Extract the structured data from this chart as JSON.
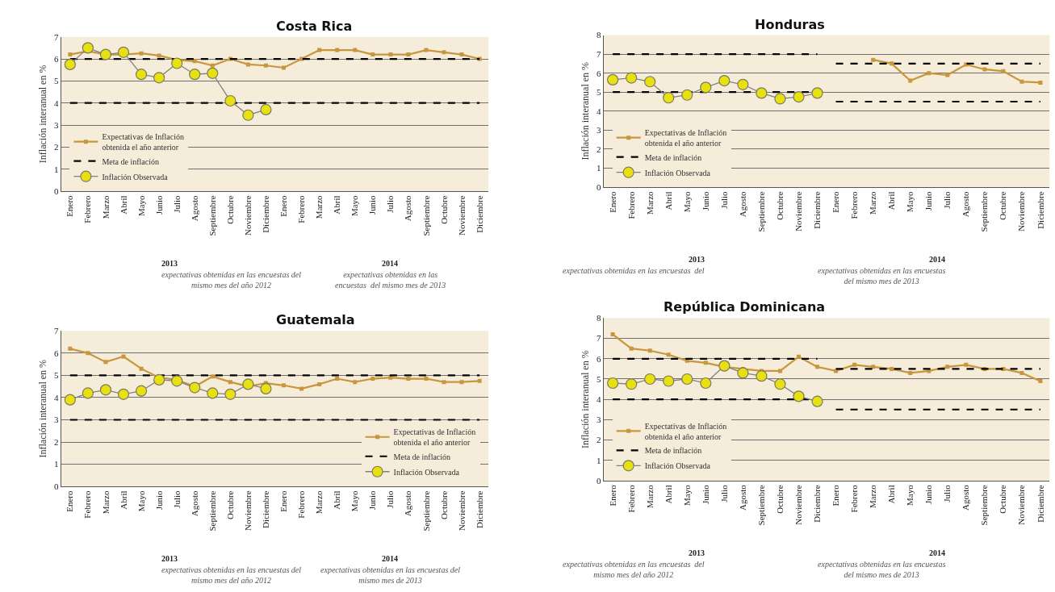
{
  "chart_data": [
    {
      "type": "line",
      "title": "Costa Rica",
      "ylabel": "Inflación interanual en %",
      "categories": [
        "Enero",
        "Febrero",
        "Marzo",
        "Abril",
        "Mayo",
        "Junio",
        "Julio",
        "Agosto",
        "Septiembre",
        "Octubre",
        "Noviembre",
        "Diciembre",
        "Enero",
        "Febrero",
        "Marzo",
        "Abril",
        "Mayo",
        "Junio",
        "Julio",
        "Agosto",
        "Septiembre",
        "Octubre",
        "Noviembre",
        "Diciembre"
      ],
      "ylim": [
        0,
        7
      ],
      "yticks": [
        0,
        1,
        2,
        3,
        4,
        5,
        6,
        7
      ],
      "grid": "y",
      "legend": "bottom left",
      "series": [
        {
          "name": "Expectativas de Inflación obtenida el año anterior",
          "color": "#c8963c",
          "marker": "square",
          "line_style": "solid",
          "values": [
            6.2,
            6.35,
            6.2,
            6.2,
            6.25,
            6.15,
            5.95,
            5.9,
            5.7,
            6.0,
            5.75,
            5.7,
            5.6,
            6.0,
            6.4,
            6.4,
            6.4,
            6.2,
            6.2,
            6.2,
            6.4,
            6.3,
            6.2,
            6.0
          ]
        },
        {
          "name": "Meta de inflación",
          "color": "#000000",
          "marker": "none",
          "line_style": "dashed",
          "values": [
            6,
            6,
            6,
            6,
            6,
            6,
            6,
            6,
            6,
            6,
            6,
            6,
            6,
            6,
            6,
            6,
            6,
            6,
            6,
            6,
            6,
            6,
            6,
            6
          ]
        },
        {
          "color": "#000000",
          "marker": "none",
          "line_style": "dashed",
          "values": [
            4,
            4,
            4,
            4,
            4,
            4,
            4,
            4,
            4,
            4,
            4,
            4,
            4,
            4,
            4,
            4,
            4,
            4,
            4,
            4,
            4,
            4,
            4,
            4
          ]
        },
        {
          "name": "Inflación Observada",
          "color": "#e8e010",
          "marker": "circle",
          "line_style": "solid",
          "values": [
            5.75,
            6.5,
            6.2,
            6.3,
            5.3,
            5.15,
            5.8,
            5.3,
            5.35,
            4.1,
            3.45,
            3.7,
            null,
            null,
            null,
            null,
            null,
            null,
            null,
            null,
            null,
            null,
            null,
            null
          ]
        }
      ],
      "annotations": [
        "2013",
        "expectativas obtenidas en las encuestas del\nmismo mes del año 2012",
        "2014",
        "expectativas obtenidas en las\nencuestas  del mismo mes de 2013"
      ]
    },
    {
      "type": "line",
      "title": "Honduras",
      "ylabel": "Inflación interanual en %",
      "categories": [
        "Enero",
        "Febrero",
        "Marzo",
        "Abril",
        "Mayo",
        "Junio",
        "Julio",
        "Agosto",
        "Septiembre",
        "Octubre",
        "Noviembre",
        "Diciembre",
        "Enero",
        "Febrero",
        "Marzo",
        "Abril",
        "Mayo",
        "Junio",
        "Julio",
        "Agosto",
        "Septiembre",
        "Octubre",
        "Noviembre",
        "Diciembre"
      ],
      "ylim": [
        0,
        8
      ],
      "yticks": [
        0,
        1,
        2,
        3,
        4,
        5,
        6,
        7,
        8
      ],
      "grid": "y",
      "legend": "bottom left",
      "series": [
        {
          "name": "Expectativas de Inflación obtenida el año anterior",
          "color": "#c8963c",
          "marker": "square",
          "line_style": "solid",
          "values": [
            null,
            null,
            null,
            null,
            null,
            null,
            null,
            null,
            null,
            null,
            null,
            null,
            null,
            null,
            6.7,
            6.5,
            5.6,
            6.0,
            5.9,
            6.45,
            6.2,
            6.1,
            5.55,
            5.5
          ]
        },
        {
          "name": "Meta de inflación",
          "color": "#000000",
          "marker": "none",
          "line_style": "dashed",
          "values": [
            7,
            7,
            7,
            7,
            7,
            7,
            7,
            7,
            7,
            7,
            7,
            7,
            null,
            null,
            null,
            null,
            null,
            null,
            null,
            null,
            null,
            null,
            null,
            null
          ]
        },
        {
          "color": "#000000",
          "marker": "none",
          "line_style": "dashed",
          "values": [
            5,
            5,
            5,
            5,
            5,
            5,
            5,
            5,
            5,
            5,
            5,
            5,
            null,
            null,
            null,
            null,
            null,
            null,
            null,
            null,
            null,
            null,
            null,
            null
          ]
        },
        {
          "color": "#000000",
          "marker": "none",
          "line_style": "dashed",
          "values": [
            null,
            null,
            null,
            null,
            null,
            null,
            null,
            null,
            null,
            null,
            null,
            null,
            6.5,
            6.5,
            6.5,
            6.5,
            6.5,
            6.5,
            6.5,
            6.5,
            6.5,
            6.5,
            6.5,
            6.5
          ]
        },
        {
          "color": "#000000",
          "marker": "none",
          "line_style": "dashed",
          "values": [
            null,
            null,
            null,
            null,
            null,
            null,
            null,
            null,
            null,
            null,
            null,
            null,
            4.5,
            4.5,
            4.5,
            4.5,
            4.5,
            4.5,
            4.5,
            4.5,
            4.5,
            4.5,
            4.5,
            4.5
          ]
        },
        {
          "name": "Inflación Observada",
          "color": "#e8e010",
          "marker": "circle",
          "line_style": "solid",
          "values": [
            5.65,
            5.75,
            5.55,
            4.7,
            4.85,
            5.25,
            5.6,
            5.4,
            4.95,
            4.65,
            4.75,
            4.95,
            null,
            null,
            null,
            null,
            null,
            null,
            null,
            null,
            null,
            null,
            null,
            null
          ]
        }
      ],
      "annotations": [
        "2013",
        "expectativas obtenidas en las encuestas  del",
        "2014",
        "expectativas obtenidas en las encuestas\ndel mismo mes de 2013"
      ]
    },
    {
      "type": "line",
      "title": "Guatemala",
      "ylabel": "Inflación interanual en %",
      "categories": [
        "Enero",
        "Febrero",
        "Marzo",
        "Abril",
        "Mayo",
        "Junio",
        "Julio",
        "Agosto",
        "Septiembre",
        "Octubre",
        "Noviembre",
        "Diciembre",
        "Enero",
        "Febrero",
        "Marzo",
        "Abril",
        "Mayo",
        "Junio",
        "Julio",
        "Agosto",
        "Septiembre",
        "Octubre",
        "Noviembre",
        "Diciembre"
      ],
      "ylim": [
        0,
        7
      ],
      "yticks": [
        0,
        1,
        2,
        3,
        4,
        5,
        6,
        7
      ],
      "grid": "y",
      "legend": "bottom right",
      "series": [
        {
          "name": "Expectativas de Inflación obtenida el año anterior",
          "color": "#c8963c",
          "marker": "square",
          "line_style": "solid",
          "values": [
            6.2,
            6.0,
            5.6,
            5.85,
            5.3,
            4.9,
            4.8,
            4.5,
            4.95,
            4.7,
            4.5,
            4.65,
            4.55,
            4.4,
            4.6,
            4.85,
            4.7,
            4.85,
            4.9,
            4.85,
            4.85,
            4.7,
            4.7,
            4.75
          ]
        },
        {
          "name": "Meta de inflación",
          "color": "#000000",
          "marker": "none",
          "line_style": "dashed",
          "values": [
            5,
            5,
            5,
            5,
            5,
            5,
            5,
            5,
            5,
            5,
            5,
            5,
            5,
            5,
            5,
            5,
            5,
            5,
            5,
            5,
            5,
            5,
            5,
            5
          ]
        },
        {
          "color": "#000000",
          "marker": "none",
          "line_style": "dashed",
          "values": [
            3,
            3,
            3,
            3,
            3,
            3,
            3,
            3,
            3,
            3,
            3,
            3,
            3,
            3,
            3,
            3,
            3,
            3,
            3,
            3,
            3,
            3,
            3,
            3
          ]
        },
        {
          "name": "Inflación Observada",
          "color": "#e8e010",
          "marker": "circle",
          "line_style": "solid",
          "values": [
            3.9,
            4.2,
            4.35,
            4.15,
            4.3,
            4.8,
            4.75,
            4.45,
            4.2,
            4.15,
            4.6,
            4.4,
            null,
            null,
            null,
            null,
            null,
            null,
            null,
            null,
            null,
            null,
            null,
            null
          ]
        }
      ],
      "annotations": [
        "2013",
        "expectativas obtenidas en las encuestas del\nmismo mes del año 2012",
        "2014",
        "expectativas obtenidas en las encuestas del\nmismo mes de 2013"
      ]
    },
    {
      "type": "line",
      "title": "República Dominicana",
      "ylabel": "Inflación interanual en %",
      "categories": [
        "Enero",
        "Febrero",
        "Marzo",
        "Abril",
        "Mayo",
        "Junio",
        "Julio",
        "Agosto",
        "Septiembre",
        "Octubre",
        "Noviembre",
        "Diciembre",
        "Enero",
        "Febrero",
        "Marzo",
        "Abril",
        "Mayo",
        "Junio",
        "Julio",
        "Agosto",
        "Septiembre",
        "Octubre",
        "Noviembre",
        "Diciembre"
      ],
      "ylim": [
        0,
        8
      ],
      "yticks": [
        0,
        1,
        2,
        3,
        4,
        5,
        6,
        7,
        8
      ],
      "grid": "y",
      "legend": "bottom left",
      "series": [
        {
          "name": "Expectativas de Inflación obtenida el año anterior",
          "color": "#c8963c",
          "marker": "square",
          "line_style": "solid",
          "values": [
            7.2,
            6.5,
            6.4,
            6.2,
            5.9,
            5.8,
            5.6,
            5.5,
            5.4,
            5.4,
            6.1,
            5.6,
            5.4,
            5.7,
            5.6,
            5.5,
            5.3,
            5.4,
            5.6,
            5.7,
            5.5,
            5.5,
            5.3,
            4.9
          ]
        },
        {
          "name": "Meta de inflación",
          "color": "#000000",
          "marker": "none",
          "line_style": "dashed",
          "values": [
            6,
            6,
            6,
            6,
            6,
            6,
            6,
            6,
            6,
            6,
            6,
            6,
            null,
            null,
            null,
            null,
            null,
            null,
            null,
            null,
            null,
            null,
            null,
            null
          ]
        },
        {
          "color": "#000000",
          "marker": "none",
          "line_style": "dashed",
          "values": [
            4,
            4,
            4,
            4,
            4,
            4,
            4,
            4,
            4,
            4,
            4,
            4,
            null,
            null,
            null,
            null,
            null,
            null,
            null,
            null,
            null,
            null,
            null,
            null
          ]
        },
        {
          "color": "#000000",
          "marker": "none",
          "line_style": "dashed",
          "values": [
            null,
            null,
            null,
            null,
            null,
            null,
            null,
            null,
            null,
            null,
            null,
            null,
            5.5,
            5.5,
            5.5,
            5.5,
            5.5,
            5.5,
            5.5,
            5.5,
            5.5,
            5.5,
            5.5,
            5.5
          ]
        },
        {
          "color": "#000000",
          "marker": "none",
          "line_style": "dashed",
          "values": [
            null,
            null,
            null,
            null,
            null,
            null,
            null,
            null,
            null,
            null,
            null,
            null,
            3.5,
            3.5,
            3.5,
            3.5,
            3.5,
            3.5,
            3.5,
            3.5,
            3.5,
            3.5,
            3.5,
            3.5
          ]
        },
        {
          "name": "Inflación Observada",
          "color": "#e8e010",
          "marker": "circle",
          "line_style": "solid",
          "values": [
            4.8,
            4.75,
            5.0,
            4.9,
            5.0,
            4.8,
            5.65,
            5.3,
            5.15,
            4.75,
            4.15,
            3.9,
            null,
            null,
            null,
            null,
            null,
            null,
            null,
            null,
            null,
            null,
            null,
            null
          ]
        }
      ],
      "annotations": [
        "2013",
        "expectativas obtenidas en las encuestas  del\nmismo mes del año 2012",
        "2014",
        "expectativas obtenidas en las encuestas\ndel mismo mes de 2013"
      ]
    }
  ]
}
